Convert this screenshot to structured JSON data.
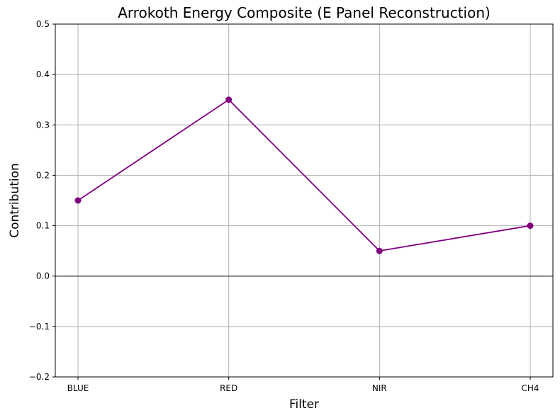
{
  "chart_data": {
    "type": "line",
    "title": "Arrokoth Energy Composite (E Panel Reconstruction)",
    "xlabel": "Filter",
    "ylabel": "Contribution",
    "categories": [
      "BLUE",
      "RED",
      "NIR",
      "CH4"
    ],
    "series": [
      {
        "values": [
          0.15,
          0.35,
          0.05,
          0.1
        ],
        "color": "#800080",
        "marker": "circle"
      }
    ],
    "ylim": [
      -0.2,
      0.5
    ],
    "yticks": [
      -0.2,
      -0.1,
      0.0,
      0.1,
      0.2,
      0.3,
      0.4,
      0.5
    ],
    "ytick_labels": [
      "−0.2",
      "−0.1",
      "0.0",
      "0.1",
      "0.2",
      "0.3",
      "0.4",
      "0.5"
    ],
    "grid": true,
    "reference_line_y": 0,
    "colors": {
      "grid": "#b0b0b0",
      "axis": "#000000",
      "reference": "#000000"
    }
  }
}
